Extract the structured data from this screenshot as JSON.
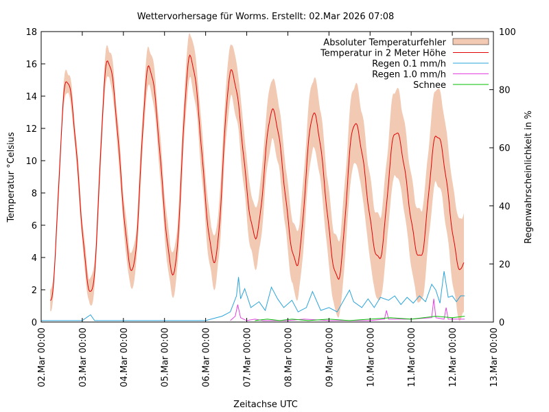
{
  "chart_data": {
    "type": "line",
    "title": "Wettervorhersage für Worms. Erstellt: 02.Mar 2026 07:08",
    "xlabel": "Zeitachse UTC",
    "ylabel": "Temperatur °Celsius",
    "y2label": "Regenwahrscheinlichkeit in %",
    "x_ticks": [
      "02.Mar 00:00",
      "03.Mar 00:00",
      "04.Mar 00:00",
      "05.Mar 00:00",
      "06.Mar 00:00",
      "07.Mar 00:00",
      "08.Mar 00:00",
      "09.Mar 00:00",
      "10.Mar 00:00",
      "11.Mar 00:00",
      "12.Mar 00:00",
      "13.Mar 00:00"
    ],
    "xlim_days": [
      0,
      11
    ],
    "ylim": [
      0,
      18
    ],
    "y_ticks": [
      0,
      2,
      4,
      6,
      8,
      10,
      12,
      14,
      16,
      18
    ],
    "y2lim": [
      0,
      100
    ],
    "y2_ticks": [
      0,
      20,
      40,
      60,
      80,
      100
    ],
    "grid": false,
    "legend_position": "top-right",
    "temperature_extremes": [
      {
        "day": 0.22,
        "value": 1.2
      },
      {
        "day": 0.62,
        "value": 15.0
      },
      {
        "day": 1.22,
        "value": 1.8
      },
      {
        "day": 1.62,
        "value": 16.2
      },
      {
        "day": 2.22,
        "value": 3.2
      },
      {
        "day": 2.62,
        "value": 15.8
      },
      {
        "day": 3.22,
        "value": 3.0
      },
      {
        "day": 3.62,
        "value": 16.4
      },
      {
        "day": 4.22,
        "value": 3.8
      },
      {
        "day": 4.62,
        "value": 15.5
      },
      {
        "day": 5.22,
        "value": 5.3
      },
      {
        "day": 5.62,
        "value": 13.1
      },
      {
        "day": 6.22,
        "value": 3.6
      },
      {
        "day": 6.62,
        "value": 12.9
      },
      {
        "day": 7.22,
        "value": 2.7
      },
      {
        "day": 7.62,
        "value": 12.3
      },
      {
        "day": 8.22,
        "value": 3.9
      },
      {
        "day": 8.62,
        "value": 11.8
      },
      {
        "day": 9.22,
        "value": 4.0
      },
      {
        "day": 9.62,
        "value": 11.6
      },
      {
        "day": 10.22,
        "value": 3.2
      },
      {
        "day": 10.3,
        "value": 3.8
      }
    ],
    "series": [
      {
        "name": "Absoluter Temperaturfehler",
        "color": "#f2c9b3",
        "kind": "band"
      },
      {
        "name": "Temperatur in 2 Meter Höhe",
        "color": "#e00000",
        "kind": "line"
      },
      {
        "name": "Regen 0.1 mm/h",
        "color": "#2aa3d9",
        "kind": "line",
        "axis": "y2"
      },
      {
        "name": "Regen 1.0 mm/h",
        "color": "#e040e0",
        "kind": "line",
        "axis": "y2"
      },
      {
        "name": "Schnee",
        "color": "#00c000",
        "kind": "line",
        "axis": "y2"
      }
    ],
    "rain_0_1_pct": [
      {
        "day": 0.0,
        "value": 0.5
      },
      {
        "day": 0.2,
        "value": 0.5
      },
      {
        "day": 0.5,
        "value": 0.5
      },
      {
        "day": 0.8,
        "value": 0.5
      },
      {
        "day": 1.0,
        "value": 0.5
      },
      {
        "day": 1.2,
        "value": 2.5
      },
      {
        "day": 1.3,
        "value": 0.5
      },
      {
        "day": 2.0,
        "value": 0.5
      },
      {
        "day": 3.0,
        "value": 0.5
      },
      {
        "day": 4.0,
        "value": 0.5
      },
      {
        "day": 4.4,
        "value": 2.0
      },
      {
        "day": 4.6,
        "value": 3.5
      },
      {
        "day": 4.75,
        "value": 9.0
      },
      {
        "day": 4.8,
        "value": 15.5
      },
      {
        "day": 4.85,
        "value": 8.0
      },
      {
        "day": 4.95,
        "value": 11.5
      },
      {
        "day": 5.1,
        "value": 5.0
      },
      {
        "day": 5.3,
        "value": 7.0
      },
      {
        "day": 5.45,
        "value": 4.0
      },
      {
        "day": 5.6,
        "value": 12.0
      },
      {
        "day": 5.75,
        "value": 8.0
      },
      {
        "day": 5.9,
        "value": 5.0
      },
      {
        "day": 6.1,
        "value": 7.5
      },
      {
        "day": 6.25,
        "value": 3.5
      },
      {
        "day": 6.45,
        "value": 5.0
      },
      {
        "day": 6.6,
        "value": 10.5
      },
      {
        "day": 6.8,
        "value": 4.0
      },
      {
        "day": 7.0,
        "value": 5.0
      },
      {
        "day": 7.2,
        "value": 3.5
      },
      {
        "day": 7.4,
        "value": 8.5
      },
      {
        "day": 7.5,
        "value": 11.0
      },
      {
        "day": 7.6,
        "value": 7.0
      },
      {
        "day": 7.8,
        "value": 5.0
      },
      {
        "day": 7.95,
        "value": 8.0
      },
      {
        "day": 8.1,
        "value": 5.0
      },
      {
        "day": 8.25,
        "value": 8.5
      },
      {
        "day": 8.45,
        "value": 7.5
      },
      {
        "day": 8.6,
        "value": 9.0
      },
      {
        "day": 8.75,
        "value": 6.0
      },
      {
        "day": 8.9,
        "value": 8.5
      },
      {
        "day": 9.05,
        "value": 6.5
      },
      {
        "day": 9.2,
        "value": 9.0
      },
      {
        "day": 9.35,
        "value": 7.0
      },
      {
        "day": 9.5,
        "value": 13.0
      },
      {
        "day": 9.6,
        "value": 11.0
      },
      {
        "day": 9.7,
        "value": 6.5
      },
      {
        "day": 9.8,
        "value": 17.5
      },
      {
        "day": 9.9,
        "value": 8.5
      },
      {
        "day": 10.0,
        "value": 9.0
      },
      {
        "day": 10.1,
        "value": 7.0
      },
      {
        "day": 10.2,
        "value": 9.0
      },
      {
        "day": 10.3,
        "value": 9.0
      }
    ],
    "rain_1_0_pct": [
      {
        "day": 4.6,
        "value": 0.5
      },
      {
        "day": 4.72,
        "value": 2.0
      },
      {
        "day": 4.78,
        "value": 6.0
      },
      {
        "day": 4.85,
        "value": 1.5
      },
      {
        "day": 5.0,
        "value": 0.5
      },
      {
        "day": 5.2,
        "value": 1.0
      },
      {
        "day": 5.4,
        "value": 0.5
      },
      {
        "day": 6.0,
        "value": 0.5
      },
      {
        "day": 6.4,
        "value": 1.0
      },
      {
        "day": 7.0,
        "value": 0.5
      },
      {
        "day": 8.0,
        "value": 0.5
      },
      {
        "day": 8.35,
        "value": 1.0
      },
      {
        "day": 8.4,
        "value": 4.0
      },
      {
        "day": 8.45,
        "value": 1.0
      },
      {
        "day": 9.0,
        "value": 1.0
      },
      {
        "day": 9.5,
        "value": 1.5
      },
      {
        "day": 9.55,
        "value": 8.0
      },
      {
        "day": 9.6,
        "value": 1.5
      },
      {
        "day": 9.8,
        "value": 1.0
      },
      {
        "day": 9.85,
        "value": 5.0
      },
      {
        "day": 9.9,
        "value": 1.0
      },
      {
        "day": 10.3,
        "value": 1.0
      }
    ],
    "snow_pct": [
      {
        "day": 5.2,
        "value": 0.5
      },
      {
        "day": 5.5,
        "value": 1.0
      },
      {
        "day": 5.8,
        "value": 0.5
      },
      {
        "day": 6.1,
        "value": 1.0
      },
      {
        "day": 6.5,
        "value": 0.5
      },
      {
        "day": 7.0,
        "value": 1.0
      },
      {
        "day": 7.5,
        "value": 0.5
      },
      {
        "day": 8.0,
        "value": 1.0
      },
      {
        "day": 8.5,
        "value": 1.5
      },
      {
        "day": 9.0,
        "value": 1.0
      },
      {
        "day": 9.3,
        "value": 1.5
      },
      {
        "day": 9.6,
        "value": 2.0
      },
      {
        "day": 10.0,
        "value": 1.5
      },
      {
        "day": 10.3,
        "value": 2.0
      }
    ]
  }
}
